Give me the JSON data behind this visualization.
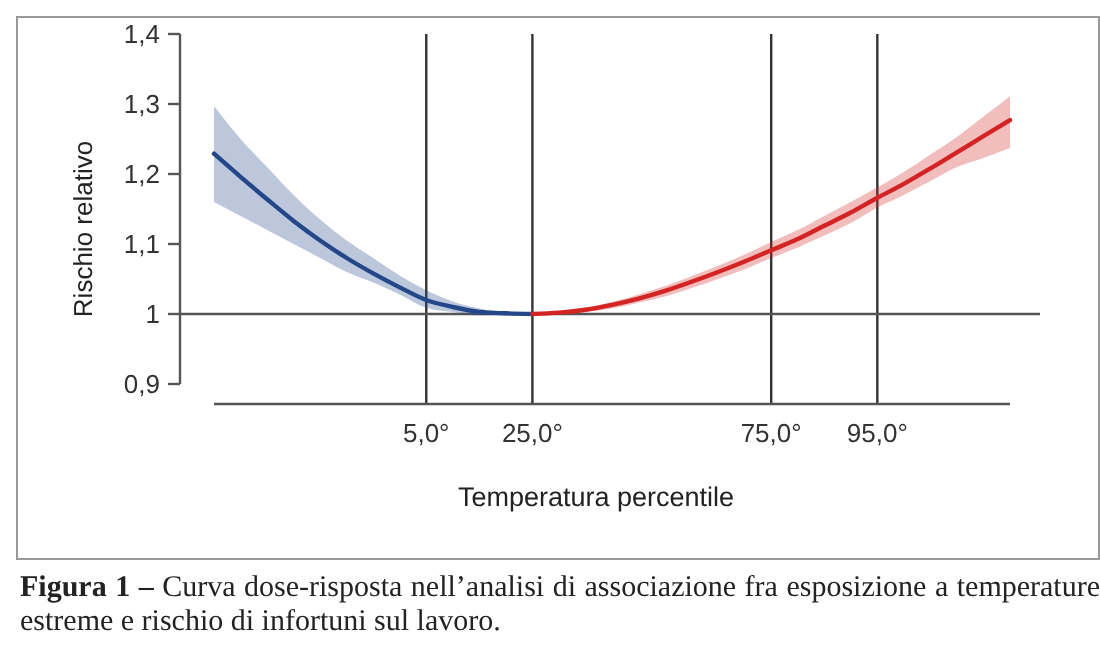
{
  "chart_data": {
    "type": "line",
    "xlabel": "Temperatura percentile",
    "ylabel": "Rischio relativo",
    "categories": [
      null,
      null,
      null,
      null,
      null,
      null,
      null,
      null,
      "5,0°",
      null,
      null,
      null,
      "25,0°",
      null,
      null,
      null,
      null,
      null,
      null,
      null,
      null,
      "75,0°",
      null,
      null,
      null,
      "95,0°",
      null,
      null,
      null,
      null,
      null
    ],
    "ylim": [
      0.9,
      1.4
    ],
    "yticks": [
      {
        "value": 0.9,
        "label": "0,9"
      },
      1,
      {
        "value": 1.1,
        "label": "1,1"
      },
      {
        "value": 1.2,
        "label": "1,2"
      },
      {
        "value": 1.3,
        "label": "1,3"
      },
      {
        "value": 1.4,
        "label": "1,4"
      }
    ],
    "grid": "x",
    "line_style": "solid",
    "ref_lines": [
      {
        "axis": "y",
        "value": 1,
        "color": "#555555"
      }
    ],
    "series": [
      {
        "color": "#24478a",
        "values": [
          1.229,
          1.196,
          1.164,
          1.133,
          1.105,
          1.08,
          1.058,
          1.038,
          1.02,
          1.01,
          1.003,
          1.001,
          1.0,
          null,
          null,
          null,
          null,
          null,
          null,
          null,
          null,
          null,
          null,
          null,
          null,
          null,
          null,
          null,
          null,
          null,
          null
        ],
        "lower": [
          1.16,
          1.14,
          1.12,
          1.1,
          1.08,
          1.06,
          1.045,
          1.028,
          1.009,
          1.003,
          0.998,
          0.999,
          1.0,
          null,
          null,
          null,
          null,
          null,
          null,
          null,
          null,
          null,
          null,
          null,
          null,
          null,
          null,
          null,
          null,
          null,
          null
        ],
        "upper": [
          1.297,
          1.25,
          1.21,
          1.17,
          1.135,
          1.105,
          1.08,
          1.055,
          1.034,
          1.018,
          1.008,
          1.003,
          1.0,
          null,
          null,
          null,
          null,
          null,
          null,
          null,
          null,
          null,
          null,
          null,
          null,
          null,
          null,
          null,
          null,
          null,
          null
        ]
      },
      {
        "color": "#d42323",
        "values": [
          null,
          null,
          null,
          null,
          null,
          null,
          null,
          null,
          null,
          null,
          null,
          null,
          1.0,
          1.002,
          1.006,
          1.013,
          1.022,
          1.033,
          1.046,
          1.06,
          1.075,
          1.091,
          1.107,
          1.126,
          1.145,
          1.166,
          1.186,
          1.208,
          1.231,
          1.254,
          1.277
        ],
        "lower": [
          null,
          null,
          null,
          null,
          null,
          null,
          null,
          null,
          null,
          null,
          null,
          null,
          1.0,
          1.0,
          1.003,
          1.008,
          1.016,
          1.025,
          1.037,
          1.05,
          1.064,
          1.08,
          1.095,
          1.112,
          1.13,
          1.152,
          1.17,
          1.19,
          1.21,
          1.223,
          1.237
        ],
        "upper": [
          null,
          null,
          null,
          null,
          null,
          null,
          null,
          null,
          null,
          null,
          null,
          null,
          1.0,
          1.004,
          1.009,
          1.017,
          1.028,
          1.04,
          1.054,
          1.069,
          1.085,
          1.103,
          1.12,
          1.14,
          1.16,
          1.181,
          1.203,
          1.228,
          1.253,
          1.282,
          1.311
        ]
      }
    ],
    "annotations": [
      "Figura 1 –",
      "Curva dose-risposta nell’analisi di associazione fra esposizione a temperature estreme e rischio di infortuni sul lavoro."
    ]
  }
}
